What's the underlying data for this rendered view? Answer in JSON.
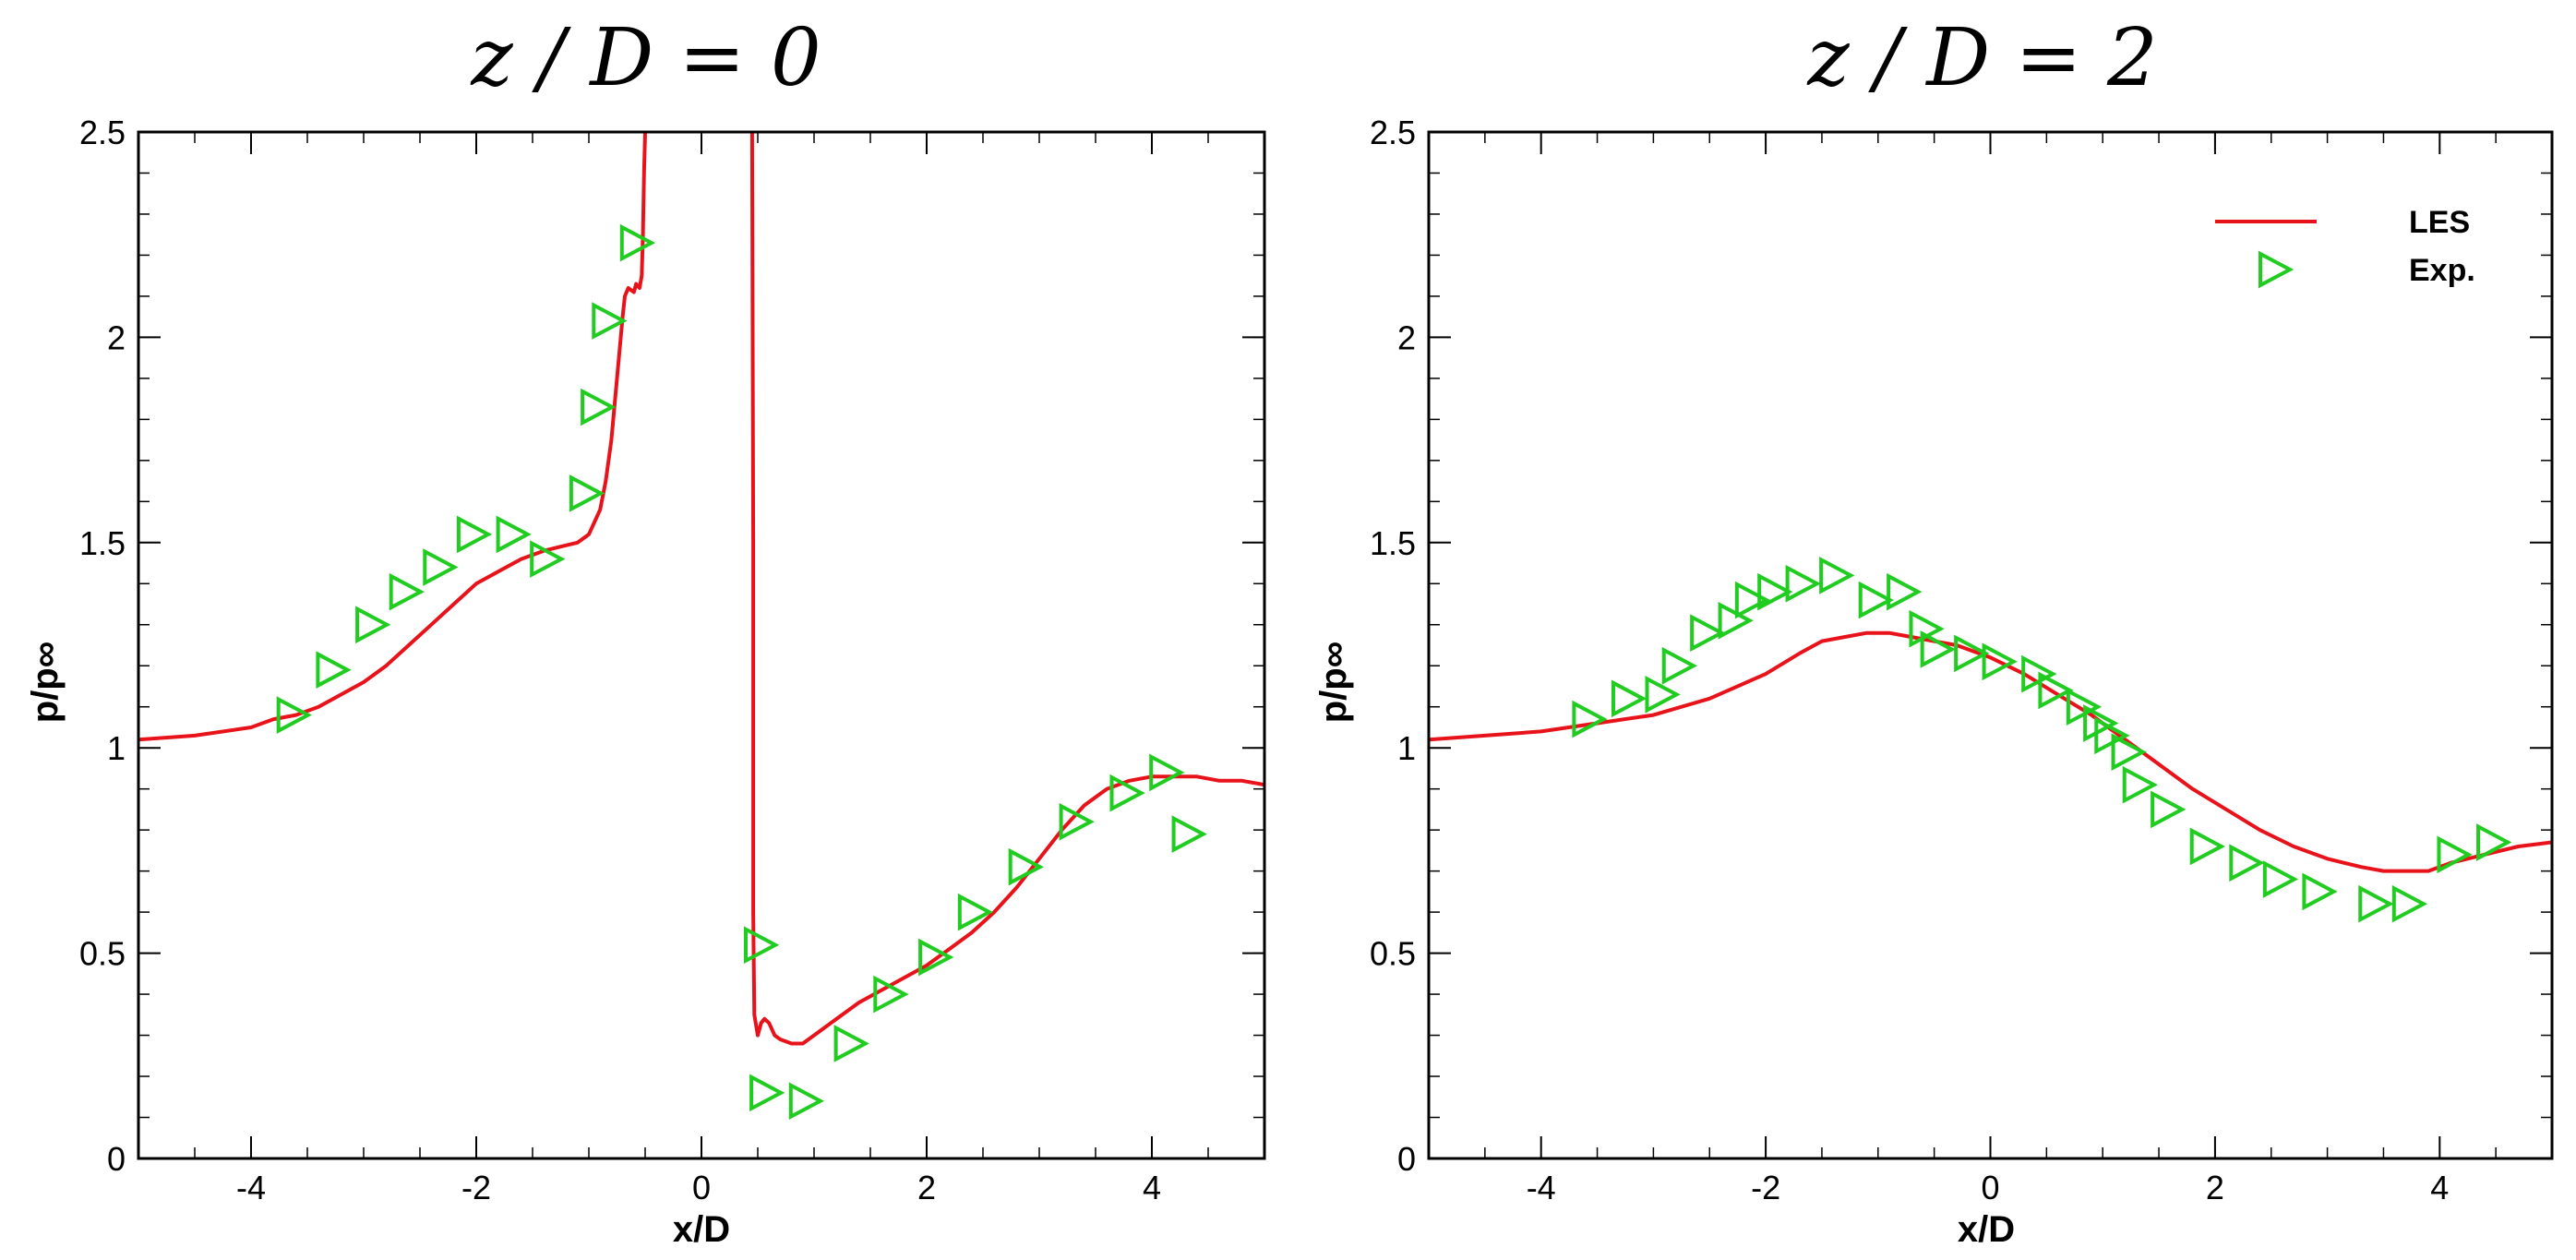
{
  "chart_data": [
    {
      "type": "line",
      "title": "z / D = 0",
      "xlabel": "x/D",
      "ylabel": "p/p∞",
      "xlim": [
        -5,
        5
      ],
      "ylim": [
        0,
        2.5
      ],
      "xticks": [
        -4,
        -2,
        0,
        2,
        4
      ],
      "yticks": [
        0,
        0.5,
        1,
        1.5,
        2,
        2.5
      ],
      "xtick_labels": [
        "-4",
        "-2",
        "0",
        "2",
        "4"
      ],
      "ytick_labels": [
        "0",
        "0.5",
        "1",
        "1.5",
        "2",
        "2.5"
      ],
      "legend": null,
      "series": [
        {
          "name": "LES",
          "kind": "line",
          "color": "#e8121a",
          "segments": [
            {
              "x": [
                -5,
                -4.5,
                -4,
                -3.8,
                -3.6,
                -3.4,
                -3.2,
                -3.0,
                -2.8,
                -2.6,
                -2.4,
                -2.2,
                -2.0,
                -1.8,
                -1.6,
                -1.4,
                -1.25,
                -1.1,
                -1.0,
                -0.9,
                -0.85,
                -0.8,
                -0.75,
                -0.7,
                -0.68,
                -0.65,
                -0.6,
                -0.58,
                -0.55,
                -0.53,
                -0.52,
                -0.51,
                -0.5
              ],
              "y": [
                1.02,
                1.03,
                1.05,
                1.07,
                1.08,
                1.1,
                1.13,
                1.16,
                1.2,
                1.25,
                1.3,
                1.35,
                1.4,
                1.43,
                1.46,
                1.48,
                1.49,
                1.5,
                1.52,
                1.58,
                1.65,
                1.75,
                1.9,
                2.05,
                2.1,
                2.12,
                2.11,
                2.13,
                2.12,
                2.15,
                2.25,
                2.4,
                2.5
              ]
            },
            {
              "x": [
                0.45,
                0.46,
                0.46,
                0.47,
                0.5,
                0.53,
                0.56,
                0.6,
                0.65,
                0.7,
                0.8,
                0.9,
                1.0,
                1.2,
                1.4,
                1.6,
                1.8,
                2.0,
                2.2,
                2.4,
                2.6,
                2.8,
                3.0,
                3.2,
                3.4,
                3.6,
                3.8,
                4.0,
                4.2,
                4.4,
                4.6,
                4.8,
                5.0
              ],
              "y": [
                2.5,
                1.5,
                0.6,
                0.35,
                0.3,
                0.33,
                0.34,
                0.33,
                0.3,
                0.29,
                0.28,
                0.28,
                0.3,
                0.34,
                0.38,
                0.41,
                0.44,
                0.47,
                0.51,
                0.55,
                0.6,
                0.66,
                0.73,
                0.8,
                0.86,
                0.9,
                0.92,
                0.93,
                0.93,
                0.93,
                0.92,
                0.92,
                0.91
              ]
            }
          ]
        },
        {
          "name": "Exp.",
          "kind": "marker",
          "marker": "triangle-right",
          "color": "#1fcc1f",
          "x": [
            -3.65,
            -3.3,
            -2.95,
            -2.65,
            -2.35,
            -2.05,
            -1.7,
            -1.4,
            -1.05,
            -0.95,
            -0.85,
            -0.6,
            0.5,
            0.55,
            0.9,
            1.3,
            1.65,
            2.05,
            2.4,
            2.85,
            3.3,
            3.75,
            4.1,
            4.3
          ],
          "y": [
            1.08,
            1.19,
            1.3,
            1.38,
            1.44,
            1.52,
            1.52,
            1.46,
            1.62,
            1.83,
            2.04,
            2.23,
            0.52,
            0.16,
            0.14,
            0.28,
            0.4,
            0.49,
            0.6,
            0.71,
            0.82,
            0.89,
            0.94,
            0.79
          ]
        }
      ]
    },
    {
      "type": "line",
      "title": "z / D = 2",
      "xlabel": "x/D",
      "ylabel": "p/p∞",
      "xlim": [
        -5,
        5
      ],
      "ylim": [
        0,
        2.5
      ],
      "xticks": [
        -4,
        -2,
        0,
        2,
        4
      ],
      "yticks": [
        0,
        0.5,
        1,
        1.5,
        2,
        2.5
      ],
      "xtick_labels": [
        "-4",
        "-2",
        "0",
        "2",
        "4"
      ],
      "ytick_labels": [
        "0",
        "0.5",
        "1",
        "1.5",
        "2",
        "2.5"
      ],
      "legend": {
        "position": "top-right",
        "entries": [
          "LES",
          "Exp."
        ]
      },
      "series": [
        {
          "name": "LES",
          "kind": "line",
          "color": "#e8121a",
          "segments": [
            {
              "x": [
                -5,
                -4.5,
                -4,
                -3.5,
                -3.0,
                -2.5,
                -2.0,
                -1.7,
                -1.5,
                -1.3,
                -1.1,
                -0.9,
                -0.7,
                -0.5,
                -0.3,
                0.0,
                0.3,
                0.6,
                0.9,
                1.2,
                1.5,
                1.8,
                2.1,
                2.4,
                2.7,
                3.0,
                3.3,
                3.5,
                3.7,
                3.9,
                4.1,
                4.4,
                4.7,
                5.0
              ],
              "y": [
                1.02,
                1.03,
                1.04,
                1.06,
                1.08,
                1.12,
                1.18,
                1.23,
                1.26,
                1.27,
                1.28,
                1.28,
                1.27,
                1.26,
                1.25,
                1.22,
                1.18,
                1.13,
                1.08,
                1.02,
                0.96,
                0.9,
                0.85,
                0.8,
                0.76,
                0.73,
                0.71,
                0.7,
                0.7,
                0.7,
                0.72,
                0.74,
                0.76,
                0.77
              ]
            }
          ]
        },
        {
          "name": "Exp.",
          "kind": "marker",
          "marker": "triangle-right",
          "color": "#1fcc1f",
          "x": [
            -3.6,
            -3.25,
            -2.95,
            -2.8,
            -2.55,
            -2.3,
            -2.15,
            -1.95,
            -1.7,
            -1.4,
            -1.05,
            -0.8,
            -0.6,
            -0.5,
            -0.2,
            0.05,
            0.4,
            0.55,
            0.8,
            0.95,
            1.05,
            1.2,
            1.3,
            1.55,
            1.9,
            2.25,
            2.55,
            2.9,
            3.4,
            3.7,
            4.1,
            4.45
          ],
          "y": [
            1.07,
            1.12,
            1.13,
            1.2,
            1.28,
            1.31,
            1.36,
            1.38,
            1.4,
            1.42,
            1.36,
            1.38,
            1.29,
            1.24,
            1.23,
            1.21,
            1.18,
            1.14,
            1.1,
            1.06,
            1.03,
            0.99,
            0.91,
            0.85,
            0.76,
            0.72,
            0.68,
            0.65,
            0.62,
            0.62,
            0.74,
            0.77
          ]
        }
      ]
    }
  ],
  "legend_labels": {
    "les": "LES",
    "exp": "Exp."
  }
}
